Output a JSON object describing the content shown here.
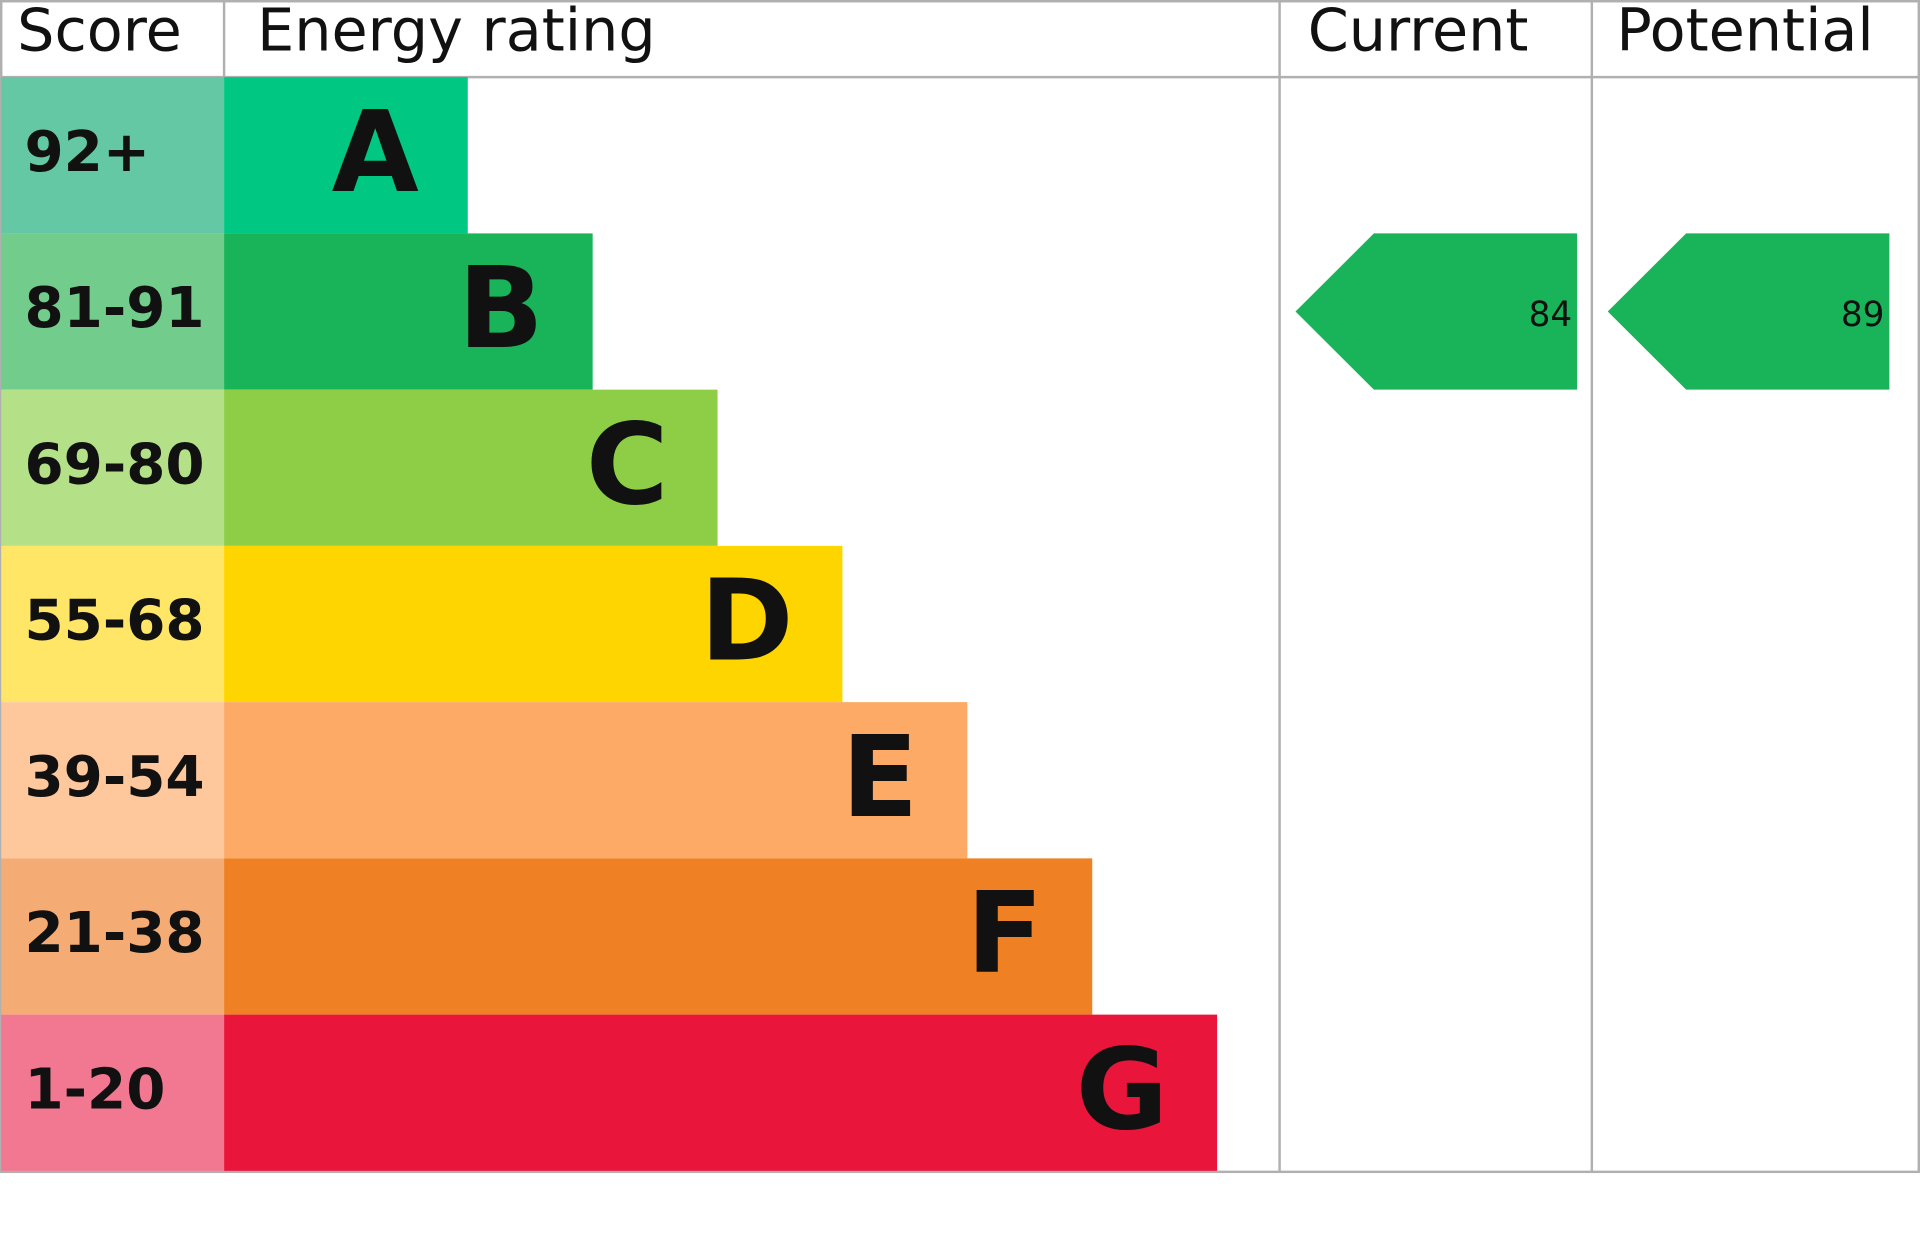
{
  "header": {
    "score": "Score",
    "energy_rating": "Energy rating",
    "current": "Current",
    "potential": "Potential"
  },
  "bands": [
    {
      "score": "92+",
      "rating": "A",
      "score_color": "#64c8a4",
      "color": "#00c781"
    },
    {
      "score": "81-91",
      "rating": "B",
      "score_color": "#72cc8c",
      "color": "#19b459"
    },
    {
      "score": "69-80",
      "rating": "C",
      "score_color": "#b4e088",
      "color": "#8dce46"
    },
    {
      "score": "55-68",
      "rating": "D",
      "score_color": "#ffe666",
      "color": "#ffd500"
    },
    {
      "score": "39-54",
      "rating": "E",
      "score_color": "#fec89c",
      "color": "#fcaa65"
    },
    {
      "score": "21-38",
      "rating": "F",
      "score_color": "#f4ac74",
      "color": "#ef8023"
    },
    {
      "score": "1-20",
      "rating": "G",
      "score_color": "#f27790",
      "color": "#e9153b"
    }
  ],
  "current": 84,
  "potential": 89
}
